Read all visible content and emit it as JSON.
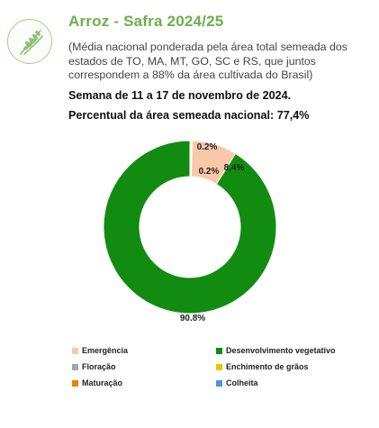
{
  "header": {
    "title": "Arroz - Safra 2024/25",
    "subtitle": "(Média nacional ponderada pela área total semeada dos estados de TO, MA, MT, GO, SC e RS, que juntos correspondem a 88% da área cultivada do Brasil)",
    "week": "Semana de 11 a 17 de novembro de 2024.",
    "percent_sown": "Percentual da área semeada nacional: 77,4%",
    "logo_icon": "rice-plant-icon"
  },
  "chart_data": {
    "type": "pie",
    "style": "donut",
    "title": "",
    "categories": [
      "Emergência",
      "Desenvolvimento vegetativo",
      "Floração",
      "Enchimento de grãos",
      "Maturação",
      "Colheita"
    ],
    "values": [
      8.4,
      90.8,
      0.2,
      0.2,
      0.0,
      0.0
    ],
    "data_labels": [
      "8,4%",
      "90.8%",
      "0.2%",
      "0.2%",
      "",
      ""
    ],
    "colors": [
      "#f8c9a8",
      "#118c11",
      "#a6a6a6",
      "#f2c200",
      "#f07f0a",
      "#4f97d1"
    ],
    "legend_position": "bottom"
  }
}
